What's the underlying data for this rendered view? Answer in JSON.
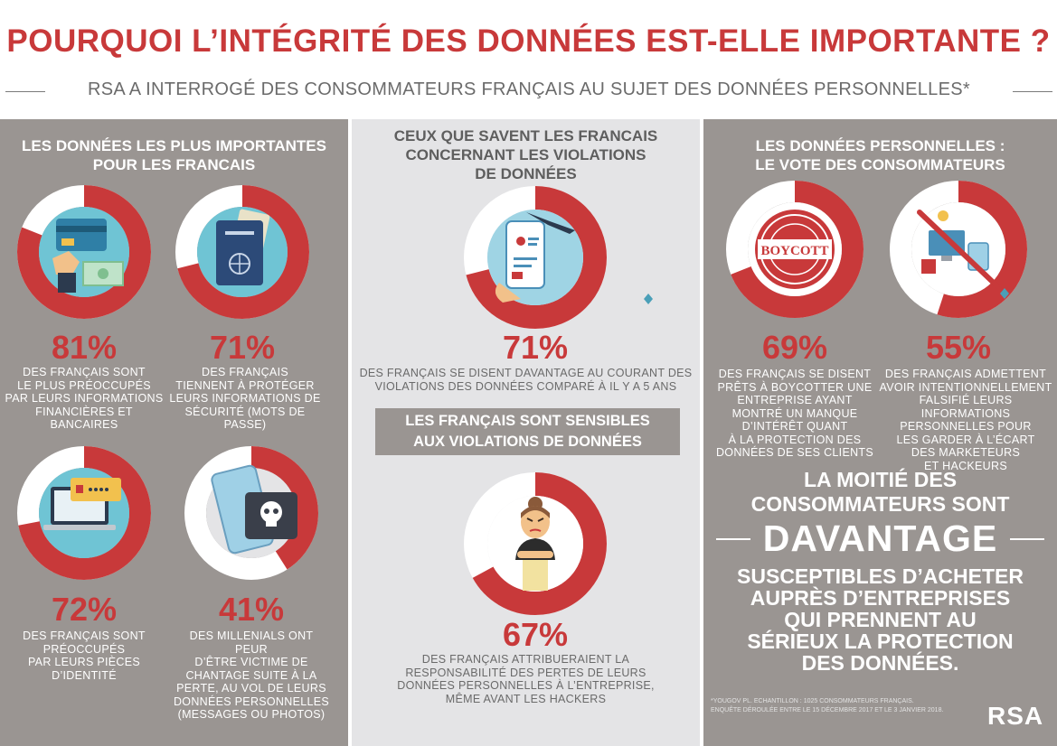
{
  "header": {
    "title": "POURQUOI L’INTÉGRITÉ DES DONNÉES EST-ELLE IMPORTANTE ?",
    "subtitle": "RSA A INTERROGÉ DES CONSOMMATEURS FRANÇAIS AU SUJET DES DONNÉES PERSONNELLES*"
  },
  "colors": {
    "accent": "#c8393a",
    "panel_gray": "#9a9592",
    "panel_light": "#e4e4e6"
  },
  "left": {
    "heading": [
      "LES DONNÉES LES PLUS IMPORTANTES",
      "POUR LES FRANCAIS"
    ],
    "stats": [
      {
        "pct": "81%",
        "value": 81,
        "icon": "credit-card-hand-icon",
        "desc": [
          "DES FRANÇAIS SONT",
          "LE PLUS PRÉOCCUPÉS",
          "PAR LEURS INFORMATIONS",
          "FINANCIÈRES ET BANCAIRES"
        ]
      },
      {
        "pct": "71%",
        "value": 71,
        "icon": "passport-icon",
        "desc": [
          "DES FRANÇAIS",
          "TIENNENT À PROTÉGER",
          "LEURS INFORMATIONS DE",
          "SÉCURITÉ (MOTS DE PASSE)"
        ]
      },
      {
        "pct": "72%",
        "value": 72,
        "icon": "laptop-password-icon",
        "desc": [
          "DES FRANÇAIS SONT",
          "PRÉOCCUPÉS",
          "PAR LEURS PIÈCES",
          "D’IDENTITÉ"
        ]
      },
      {
        "pct": "41%",
        "value": 41,
        "icon": "phone-skull-icon",
        "desc": [
          "DES MILLENIALS ONT PEUR",
          "D’ÊTRE VICTIME DE",
          "CHANTAGE SUITE À LA",
          "PERTE, AU VOL DE LEURS",
          "DONNÉES PERSONNELLES",
          "(MESSAGES OU PHOTOS)"
        ]
      }
    ]
  },
  "middle": {
    "heading": [
      "CEUX QUE SAVENT LES FRANCAIS",
      "CONCERNANT LES VIOLATIONS",
      "DE DONNÉES"
    ],
    "stat1": {
      "pct": "71%",
      "value": 71,
      "icon": "phone-thief-icon",
      "desc": [
        "DES FRANÇAIS SE DISENT DAVANTAGE AU COURANT DES",
        "VIOLATIONS DES DONNÉES COMPARÉ À IL Y A 5 ANS"
      ]
    },
    "banner": [
      "LES FRANÇAIS SONT SENSIBLES",
      "AUX VIOLATIONS DE DONNÉES"
    ],
    "stat2": {
      "pct": "67%",
      "value": 67,
      "icon": "angry-woman-icon",
      "desc": [
        "DES FRANÇAIS ATTRIBUERAIENT LA",
        "RESPONSABILITÉ DES PERTES DE LEURS",
        "DONNÉES PERSONNELLES À L’ENTREPRISE,",
        "MÊME AVANT LES HACKERS"
      ]
    }
  },
  "right": {
    "heading": [
      "LES DONNÉES PERSONNELLES :",
      "LE VOTE DES CONSOMMATEURS"
    ],
    "stats": [
      {
        "pct": "69%",
        "value": 69,
        "icon": "boycott-stamp-icon",
        "stamp": "BOYCOTT",
        "desc": [
          "DES FRANÇAIS SE DISENT",
          "PRÊTS À BOYCOTTER UNE",
          "ENTREPRISE AYANT",
          "MONTRÉ UN MANQUE",
          "D’INTÉRÊT QUANT",
          "À LA PROTECTION DES",
          "DONNÉES DE SES CLIENTS"
        ]
      },
      {
        "pct": "55%",
        "value": 55,
        "icon": "no-marketing-icon",
        "desc": [
          "DES FRANÇAIS ADMETTENT",
          "AVOIR INTENTIONNELLEMENT",
          "FALSIFIÉ LEURS INFORMATIONS",
          "PERSONNELLES POUR",
          "LES GARDER À L’ÉCART",
          "DES MARKETEURS",
          "ET HACKEURS"
        ]
      }
    ],
    "big_text_1": [
      "LA MOITIÉ DES",
      "CONSOMMATEURS SONT"
    ],
    "big_word": "DAVANTAGE",
    "big_text_2": [
      "SUSCEPTIBLES D’ACHETER",
      "AUPRÈS D’ENTREPRISES",
      "QUI PRENNENT AU",
      "SÉRIEUX LA PROTECTION",
      "DES DONNÉES."
    ],
    "footnote": [
      "*YOUGOV PL. ECHANTILLON : 1025 CONSOMMATEURS FRANÇAIS.",
      "ENQUÊTE DÉROULÉE ENTRE LE 15 DÉCEMBRE 2017 ET LE 3 JANVIER 2018."
    ],
    "logo": "RSA"
  }
}
